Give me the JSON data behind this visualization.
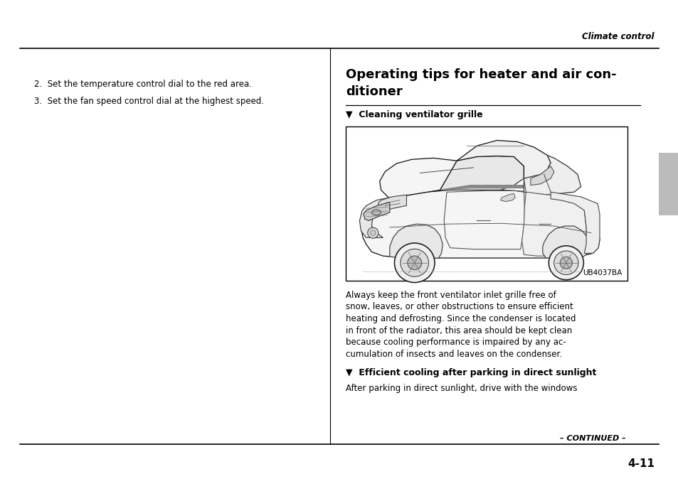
{
  "bg_color": "#ffffff",
  "page_width": 9.54,
  "page_height": 6.74,
  "header_text": "Climate control",
  "left_col_item2": "2.  Set the temperature control dial to the red area.",
  "left_col_item3": "3.  Set the fan speed control dial at the highest speed.",
  "section_title_line1": "Operating tips for heater and air con-",
  "section_title_line2": "ditioner",
  "sub1_title": "▼  Cleaning ventilator grille",
  "image_label": "UB4037BA",
  "body_lines": [
    "Always keep the front ventilator inlet grille free of",
    "snow, leaves, or other obstructions to ensure efficient",
    "heating and defrosting. Since the condenser is located",
    "in front of the radiator, this area should be kept clean",
    "because cooling performance is impaired by any ac-",
    "cumulation of insects and leaves on the condenser."
  ],
  "sub2_title": "▼  Efficient cooling after parking in direct sunlight",
  "sub2_body": "After parking in direct sunlight, drive with the windows",
  "footer_continued": "– CONTINUED –",
  "page_number": "4-11",
  "gray_tab_color": "#bbbbbb",
  "rule_color": "#000000"
}
